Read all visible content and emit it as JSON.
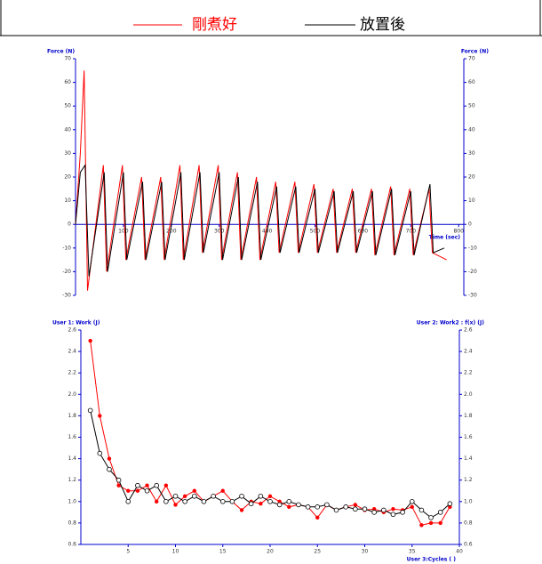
{
  "header": {
    "legend": [
      {
        "name": "剛煮好",
        "color": "#ff0000"
      },
      {
        "name": "放置後",
        "color": "#000000"
      }
    ]
  },
  "chart_data": [
    {
      "type": "line",
      "y_label": "Force (N)",
      "y2_label": "Force (N)",
      "x_label": "Time (sec)",
      "xlim": [
        0,
        800
      ],
      "xticks": [
        100,
        200,
        300,
        400,
        500,
        600,
        700,
        800
      ],
      "ylim": [
        -30,
        70
      ],
      "yticks": [
        -30,
        -20,
        -10,
        0,
        10,
        20,
        30,
        40,
        50,
        60,
        70
      ],
      "y2lim": [
        -30,
        70
      ],
      "y2ticks": [
        -30,
        -20,
        -10,
        0,
        10,
        20,
        30,
        40,
        50,
        60,
        70
      ],
      "axis_color": "#0000cc",
      "series": [
        {
          "name": "剛煮好",
          "color": "#ff0000",
          "x": [
            0,
            10,
            18,
            25,
            58,
            65,
            98,
            105,
            138,
            145,
            178,
            185,
            218,
            225,
            258,
            265,
            298,
            305,
            338,
            345,
            378,
            385,
            418,
            425,
            458,
            465,
            498,
            505,
            538,
            545,
            578,
            585,
            618,
            625,
            658,
            665,
            698,
            705,
            738,
            745,
            775
          ],
          "values": [
            0,
            30,
            65,
            -28,
            25,
            -20,
            25,
            -15,
            20,
            -15,
            20,
            -15,
            25,
            -15,
            25,
            -12,
            25,
            -15,
            22,
            -15,
            20,
            -15,
            18,
            -12,
            18,
            -12,
            17,
            -12,
            15,
            -12,
            15,
            -12,
            15,
            -13,
            16,
            -13,
            15,
            -13,
            15,
            -12,
            -15
          ]
        },
        {
          "name": "放置後",
          "color": "#000000",
          "x": [
            0,
            10,
            20,
            28,
            60,
            67,
            100,
            107,
            140,
            147,
            180,
            187,
            220,
            227,
            260,
            267,
            300,
            307,
            340,
            347,
            380,
            387,
            420,
            427,
            460,
            467,
            500,
            507,
            540,
            547,
            580,
            587,
            620,
            627,
            660,
            667,
            700,
            707,
            740,
            747,
            770
          ],
          "values": [
            0,
            22,
            25,
            -22,
            22,
            -20,
            22,
            -15,
            18,
            -15,
            18,
            -15,
            22,
            -15,
            22,
            -12,
            22,
            -15,
            20,
            -15,
            18,
            -15,
            16,
            -12,
            16,
            -12,
            15,
            -12,
            14,
            -12,
            14,
            -12,
            14,
            -13,
            15,
            -13,
            14,
            -13,
            17,
            -12,
            -10
          ]
        }
      ]
    },
    {
      "type": "line",
      "y_label": "User 1: Work (J)",
      "y2_label": "User 2: Work2 : f(x) (J)",
      "x_label": "User 3:Cycles ( )",
      "xlim": [
        0,
        40
      ],
      "xticks": [
        5,
        10,
        15,
        20,
        25,
        30,
        35,
        40
      ],
      "ylim": [
        0.6,
        2.6
      ],
      "yticks": [
        0.6,
        0.8,
        {
          "value": 1,
          "label": "1.0"
        },
        1.2,
        1.4,
        1.6,
        1.8,
        {
          "value": 2,
          "label": "2.0"
        },
        2.2,
        2.4,
        2.6
      ],
      "y2lim": [
        0.6,
        2.6
      ],
      "y2ticks": [
        0.6,
        0.8,
        {
          "value": 1,
          "label": "1.0"
        },
        1.2,
        1.4,
        1.6,
        1.8,
        {
          "value": 2,
          "label": "2.0"
        },
        2.2,
        2.4,
        2.6
      ],
      "axis_color": "#0000cc",
      "series": [
        {
          "color": "#ff0000",
          "marker": "filled",
          "x": [
            1,
            2,
            3,
            4,
            5,
            6,
            7,
            8,
            9,
            10,
            11,
            12,
            13,
            14,
            15,
            16,
            17,
            18,
            19,
            20,
            21,
            22,
            23,
            24,
            25,
            26,
            27,
            28,
            29,
            30,
            31,
            32,
            33,
            34,
            35,
            36,
            37,
            38,
            39
          ],
          "values": [
            2.5,
            1.8,
            1.4,
            1.15,
            1.1,
            1.1,
            1.15,
            1.0,
            1.15,
            0.97,
            1.05,
            1.1,
            1.0,
            1.05,
            1.1,
            1.0,
            0.92,
            1.0,
            0.98,
            1.05,
            1.0,
            0.95,
            0.97,
            0.95,
            0.85,
            0.97,
            0.92,
            0.95,
            0.97,
            0.92,
            0.93,
            0.9,
            0.93,
            0.92,
            0.95,
            0.78,
            0.8,
            0.8,
            0.95
          ]
        },
        {
          "color": "#000000",
          "marker": "open",
          "x": [
            1,
            2,
            3,
            4,
            5,
            6,
            7,
            8,
            9,
            10,
            11,
            12,
            13,
            14,
            15,
            16,
            17,
            18,
            19,
            20,
            21,
            22,
            23,
            24,
            25,
            26,
            27,
            28,
            29,
            30,
            31,
            32,
            33,
            34,
            35,
            36,
            37,
            38,
            39
          ],
          "values": [
            1.85,
            1.45,
            1.3,
            1.2,
            1.0,
            1.15,
            1.1,
            1.15,
            1.0,
            1.05,
            1.0,
            1.05,
            1.0,
            1.05,
            1.0,
            1.0,
            1.05,
            0.98,
            1.05,
            1.0,
            0.97,
            1.0,
            0.97,
            0.95,
            0.95,
            0.97,
            0.92,
            0.95,
            0.93,
            0.93,
            0.9,
            0.92,
            0.88,
            0.9,
            1.0,
            0.92,
            0.85,
            0.9,
            0.98
          ]
        }
      ]
    }
  ]
}
